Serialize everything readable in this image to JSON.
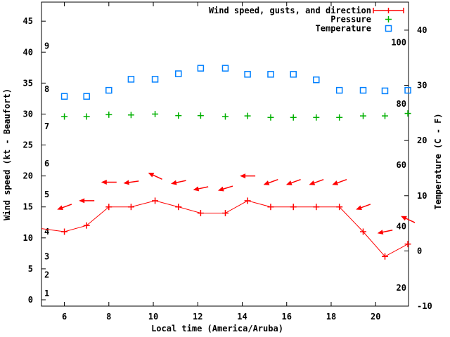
{
  "chart_data": {
    "type": "line",
    "title": "",
    "xlabel": "Local time (America/Aruba)",
    "ylabel_left": "Wind speed (kt - Beaufort)",
    "ylabel_right": "Temperature (C - F)",
    "grid": false,
    "background": "#ffffff",
    "axis_color": "#000000",
    "legend_position": "top-right",
    "legend": {
      "items": [
        {
          "label": "Wind speed, gusts, and direction",
          "series": "wind",
          "color": "#ff0000",
          "marker": "errorbar-plus"
        },
        {
          "label": "Pressure",
          "series": "pressure",
          "color": "#00b000",
          "marker": "plus"
        },
        {
          "label": "Temperature",
          "series": "temperature",
          "color": "#0080ff",
          "marker": "open-square"
        }
      ]
    },
    "x_range": [
      4.97,
      21.48
    ],
    "x_ticks": [
      6,
      8,
      10,
      12,
      14,
      16,
      18,
      20
    ],
    "y_left": {
      "range": [
        -1.02,
        48.08
      ],
      "ticks": [
        0,
        5,
        10,
        15,
        20,
        25,
        30,
        35,
        40,
        45
      ],
      "beaufort_labels": [
        {
          "beaufort": "1",
          "kt": 1
        },
        {
          "beaufort": "2",
          "kt": 4
        },
        {
          "beaufort": "3",
          "kt": 7
        },
        {
          "beaufort": "4",
          "kt": 11
        },
        {
          "beaufort": "5",
          "kt": 17
        },
        {
          "beaufort": "6",
          "kt": 22
        },
        {
          "beaufort": "7",
          "kt": 28
        },
        {
          "beaufort": "8",
          "kt": 34
        },
        {
          "beaufort": "9",
          "kt": 41
        }
      ]
    },
    "y_right": {
      "range": [
        -10,
        45.08
      ],
      "ticks_celsius": [
        -10,
        0,
        10,
        20,
        30,
        40
      ],
      "fahrenheit_labels": [
        20,
        40,
        60,
        80,
        100
      ]
    },
    "x_hours": [
      6.0,
      7.0,
      8.0,
      9.0,
      10.08,
      11.13,
      12.13,
      13.24,
      14.24,
      15.28,
      16.3,
      17.33,
      18.37,
      19.44,
      20.42,
      21.45
    ],
    "series": [
      {
        "name": "wind_speed_kt",
        "color": "#ff0000",
        "style": "line-plus",
        "axis": "left",
        "edge_point": {
          "x": 4.97,
          "value": 11.5
        },
        "values": [
          11,
          12,
          15,
          15,
          16,
          15,
          14,
          14,
          16,
          15,
          15,
          15,
          15,
          11,
          7,
          9
        ]
      },
      {
        "name": "wind_gusts_kt_with_direction",
        "color": "#ff0000",
        "style": "direction-arrow",
        "axis": "left",
        "values": [
          15,
          16,
          19,
          19,
          20,
          19,
          18,
          18,
          20,
          19,
          19,
          19,
          19,
          15,
          11,
          13
        ],
        "arrow_angles_css_deg": [
          160,
          180,
          180,
          172,
          205,
          168,
          168,
          163,
          180,
          160,
          160,
          160,
          160,
          160,
          168,
          205
        ],
        "angle_note": "CSS clockwise degrees, 0 = pointing right, 180 = pointing left (easterly wind)"
      },
      {
        "name": "pressure_left_axis_units",
        "color": "#00b000",
        "style": "plus",
        "axis": "left",
        "values": [
          29.6,
          29.6,
          29.9,
          29.85,
          30.0,
          29.75,
          29.75,
          29.6,
          29.7,
          29.45,
          29.45,
          29.45,
          29.45,
          29.7,
          29.7,
          30.1
        ]
      },
      {
        "name": "temperature_c",
        "color": "#0080ff",
        "style": "open-square",
        "axis": "right",
        "values": [
          28,
          28,
          29.1,
          31.1,
          31.1,
          32.1,
          33.1,
          33.1,
          32,
          32,
          32,
          31,
          29.1,
          29.1,
          29,
          29.1
        ]
      }
    ]
  }
}
